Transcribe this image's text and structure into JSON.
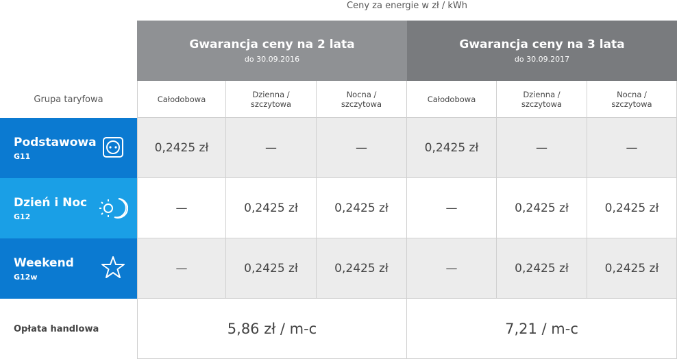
{
  "caption": "Ceny za energie w zł / kWh",
  "row_header": "Grupa taryfowa",
  "groups": [
    {
      "title": "Gwarancja ceny na 2 lata",
      "subtitle": "do 30.09.2016",
      "columns": [
        "Całodobowa",
        "Dzienna / szczytowa",
        "Nocna / szczytowa"
      ]
    },
    {
      "title": "Gwarancja ceny na 3 lata",
      "subtitle": "do 30.09.2017",
      "columns": [
        "Całodobowa",
        "Dzienna / szczytowa",
        "Nocna / szczytowa"
      ]
    }
  ],
  "rows": [
    {
      "name": "Podstawowa",
      "code": "G11",
      "cells": [
        "0,2425 zł",
        "—",
        "—",
        "0,2425 zł",
        "—",
        "—"
      ]
    },
    {
      "name": "Dzień i Noc",
      "code": "G12",
      "cells": [
        "—",
        "0,2425 zł",
        "0,2425 zł",
        "—",
        "0,2425 zł",
        "0,2425 zł"
      ]
    },
    {
      "name": "Weekend",
      "code": "G12w",
      "cells": [
        "—",
        "0,2425 zł",
        "0,2425 zł",
        "—",
        "0,2425 zł",
        "0,2425 zł"
      ]
    }
  ],
  "fee": {
    "label": "Opłata handlowa",
    "values": [
      "5,86 zł / m-c",
      "7,21 / m-c"
    ]
  }
}
